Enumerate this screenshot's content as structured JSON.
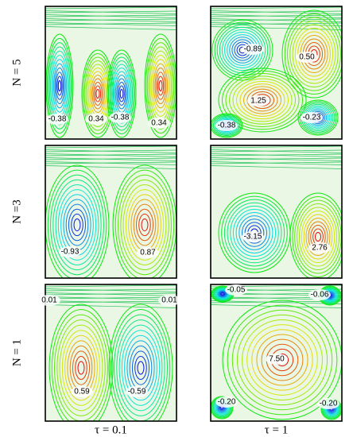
{
  "rows": [
    {
      "label": "N = 5",
      "panels": [
        {
          "labels": [
            "-0.38",
            "0.34",
            "-0.38",
            "0.34"
          ]
        },
        {
          "labels": [
            "-0.89",
            "0.50",
            "1.25",
            "-0.23",
            "-0.38"
          ]
        }
      ]
    },
    {
      "label": "N =3",
      "panels": [
        {
          "labels": [
            "-0.93",
            "0.87"
          ]
        },
        {
          "labels": [
            "-3.15",
            "2.76"
          ]
        }
      ]
    },
    {
      "label": "N = 1",
      "panels": [
        {
          "labels": [
            "0.01",
            "0.01",
            "0.59",
            "-0.59"
          ]
        },
        {
          "labels": [
            "-0.05",
            "-0.06",
            "7.50",
            "-0.20",
            "-0.20"
          ]
        }
      ]
    }
  ],
  "columns": [
    "τ = 0.1",
    "τ = 1"
  ]
}
